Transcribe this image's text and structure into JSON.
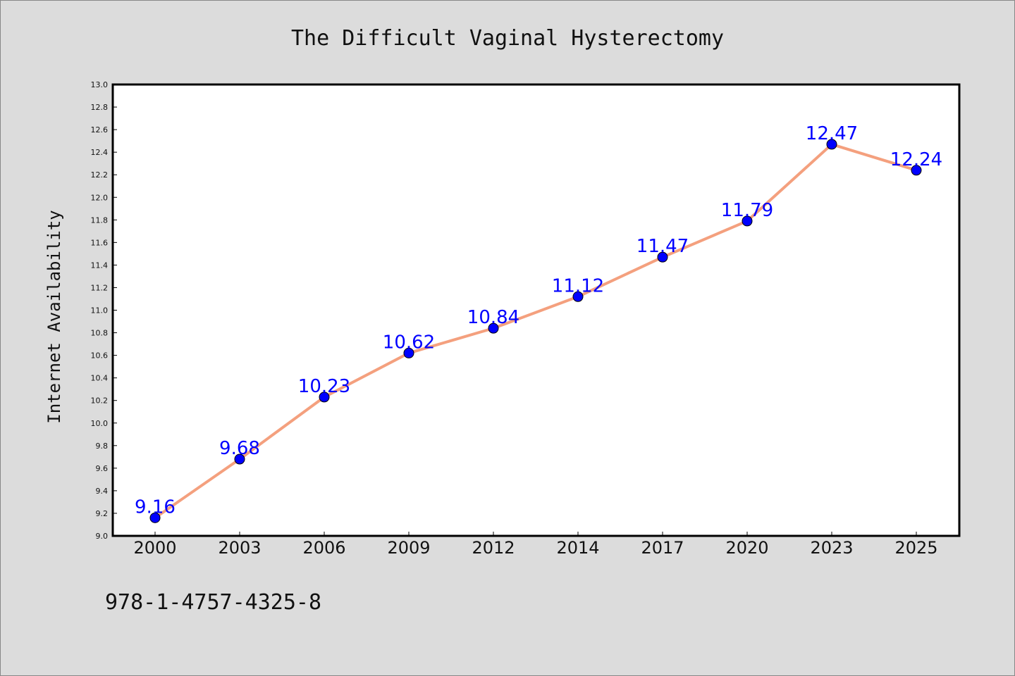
{
  "chart_data": {
    "type": "line",
    "title": "The Difficult Vaginal Hysterectomy",
    "xlabel": "",
    "ylabel": "Internet Availability",
    "categories": [
      "2000",
      "2003",
      "2006",
      "2009",
      "2012",
      "2014",
      "2017",
      "2020",
      "2023",
      "2025"
    ],
    "values": [
      9.16,
      9.68,
      10.23,
      10.62,
      10.84,
      11.12,
      11.47,
      11.79,
      12.47,
      12.24
    ],
    "data_labels": [
      "9.16",
      "9.68",
      "10.23",
      "10.62",
      "10.84",
      "11.12",
      "11.47",
      "11.79",
      "12.47",
      "12.24"
    ],
    "ylim": [
      9.0,
      13.0
    ],
    "yticks": [
      "9.0",
      "9.2",
      "9.4",
      "9.6",
      "9.8",
      "10.0",
      "10.2",
      "10.4",
      "10.6",
      "10.8",
      "11.0",
      "11.2",
      "11.4",
      "11.6",
      "11.8",
      "12.0",
      "12.2",
      "12.4",
      "12.6",
      "12.8",
      "13.0"
    ],
    "grid": false,
    "legend": "none",
    "colors": {
      "line": "#f4a07e",
      "marker": "#0000ff",
      "label": "#0000ff",
      "background": "#dcdcdc",
      "plot_area": "#ffffff"
    }
  },
  "footer": {
    "isbn": "978-1-4757-4325-8"
  }
}
